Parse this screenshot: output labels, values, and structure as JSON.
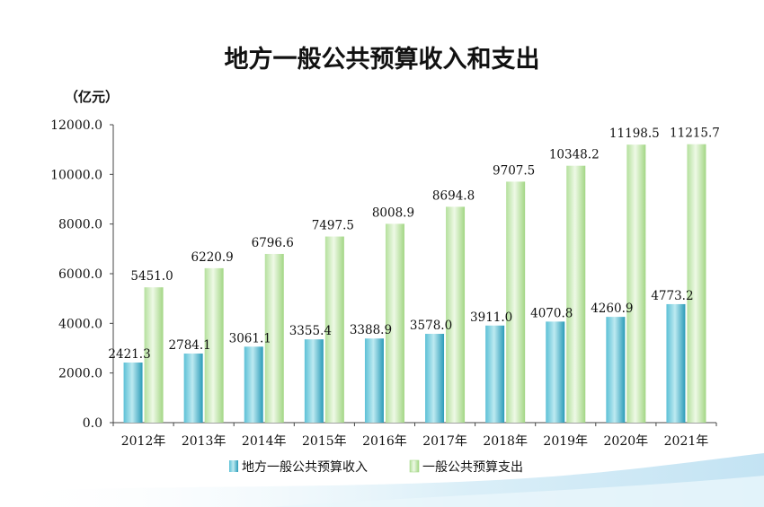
{
  "page": {
    "title": "地方一般公共预算收入和支出",
    "unit": "（亿元）"
  },
  "colors": {
    "revenue_top": "#a6e0ea",
    "revenue_bottom": "#2a9bb8",
    "expenditure_top": "#e2f4d2",
    "expenditure_bottom": "#a8d98c",
    "axis": "#444444",
    "background_wave": "#d9eef8"
  },
  "chart_data": {
    "type": "bar",
    "title": "地方一般公共预算收入和支出",
    "ylabel": "（亿元）",
    "xlabel": "",
    "ylim": [
      0,
      12000
    ],
    "y_ticks": [
      "0.0",
      "2000.0",
      "4000.0",
      "6000.0",
      "8000.0",
      "10000.0",
      "12000.0"
    ],
    "y_tick_values": [
      0,
      2000,
      4000,
      6000,
      8000,
      10000,
      12000
    ],
    "categories": [
      "2012年",
      "2013年",
      "2014年",
      "2015年",
      "2016年",
      "2017年",
      "2018年",
      "2019年",
      "2020年",
      "2021年"
    ],
    "series": [
      {
        "name": "地方一般公共预算收入",
        "values": [
          2421.3,
          2784.1,
          3061.1,
          3355.4,
          3388.9,
          3578.0,
          3911.0,
          4070.8,
          4260.9,
          4773.2
        ],
        "labels": [
          "2421.3",
          "2784.1",
          "3061.1",
          "3355.4",
          "3388.9",
          "3578.0",
          "3911.0",
          "4070.8",
          "4260.9",
          "4773.2"
        ]
      },
      {
        "name": "一般公共预算支出",
        "values": [
          5451.0,
          6220.9,
          6796.6,
          7497.5,
          8008.9,
          8694.8,
          9707.5,
          10348.2,
          11198.5,
          11215.7
        ],
        "labels": [
          "5451.0",
          "6220.9",
          "6796.6",
          "7497.5",
          "8008.9",
          "8694.8",
          "9707.5",
          "10348.2",
          "11198.5",
          "11215.7"
        ]
      }
    ],
    "grid": false,
    "legend_position": "bottom-center"
  }
}
